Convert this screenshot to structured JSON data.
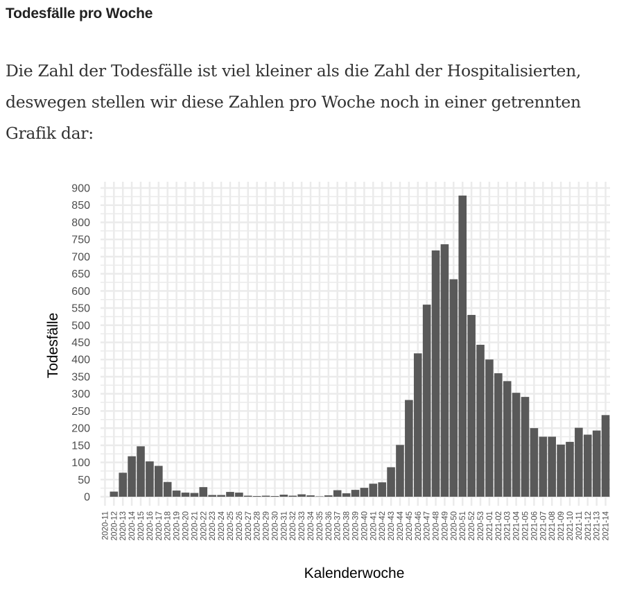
{
  "heading": "Todesfälle pro Woche",
  "paragraph": "Die Zahl der Todesfälle ist viel kleiner als die Zahl der Hospitalisierten, deswegen stellen wir diese Zahlen pro Woche noch in einer getrennten Grafik dar:",
  "chart_data": {
    "type": "bar",
    "title": "",
    "xlabel": "Kalenderwoche",
    "ylabel": "Todesfälle",
    "ylim": [
      0,
      900
    ],
    "yticks": [
      0,
      50,
      100,
      150,
      200,
      250,
      300,
      350,
      400,
      450,
      500,
      550,
      600,
      650,
      700,
      750,
      800,
      850,
      900
    ],
    "grid": true,
    "legend": "none",
    "bar_color": "#595959",
    "grid_color": "#ebebeb",
    "categories": [
      "2020-11",
      "2020-12",
      "2020-13",
      "2020-14",
      "2020-15",
      "2020-16",
      "2020-17",
      "2020-18",
      "2020-19",
      "2020-20",
      "2020-21",
      "2020-22",
      "2020-23",
      "2020-24",
      "2020-25",
      "2020-26",
      "2020-27",
      "2020-28",
      "2020-29",
      "2020-30",
      "2020-31",
      "2020-32",
      "2020-33",
      "2020-34",
      "2020-35",
      "2020-36",
      "2020-37",
      "2020-38",
      "2020-39",
      "2020-40",
      "2020-41",
      "2020-42",
      "2020-43",
      "2020-44",
      "2020-45",
      "2020-46",
      "2020-47",
      "2020-48",
      "2020-49",
      "2020-50",
      "2020-51",
      "2020-52",
      "2020-53",
      "2021-01",
      "2021-02",
      "2021-03",
      "2021-04",
      "2021-05",
      "2021-06",
      "2021-07",
      "2021-08",
      "2021-09",
      "2021-10",
      "2021-11",
      "2021-12",
      "2021-13",
      "2021-14"
    ],
    "values": [
      0,
      15,
      70,
      118,
      147,
      103,
      90,
      43,
      18,
      12,
      11,
      28,
      5,
      5,
      14,
      12,
      3,
      2,
      3,
      2,
      6,
      3,
      7,
      4,
      1,
      4,
      19,
      10,
      20,
      26,
      38,
      42,
      86,
      151,
      282,
      418,
      560,
      718,
      736,
      634,
      878,
      530,
      443,
      400,
      360,
      337,
      303,
      291,
      200,
      175,
      175,
      152,
      160,
      201,
      181,
      193,
      238
    ]
  }
}
